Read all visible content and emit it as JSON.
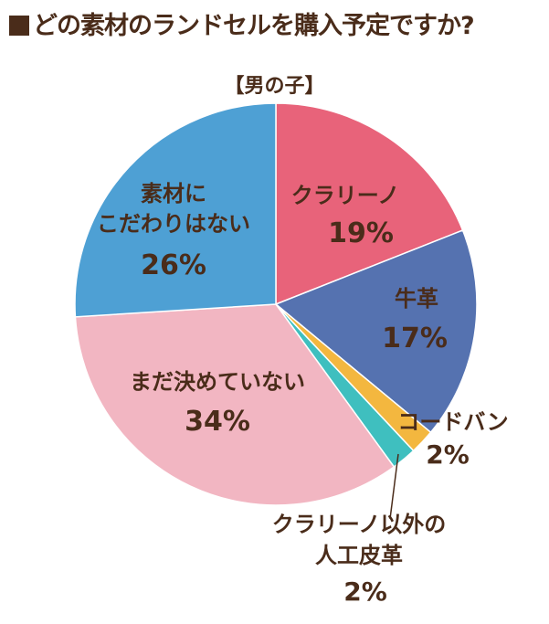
{
  "title": "どの素材のランドセルを購入予定ですか?",
  "subtitle": "【男の子】",
  "colors": {
    "text": "#4a2c1a",
    "clarino": "#e8637a",
    "leather": "#5572b0",
    "cordovan": "#f3b73f",
    "other_artificial": "#3fbfbf",
    "undecided": "#f2b6c2",
    "no_preference": "#4ea0d4"
  },
  "chart_data": {
    "type": "pie",
    "title": "どの素材のランドセルを購入予定ですか?",
    "subtitle": "【男の子】",
    "start_angle_deg": 0,
    "direction": "clockwise",
    "slices": [
      {
        "label": "クラリーノ",
        "value": 19,
        "display": "19%",
        "color": "#e8637a"
      },
      {
        "label": "牛革",
        "value": 17,
        "display": "17%",
        "color": "#5572b0"
      },
      {
        "label": "コードバン",
        "value": 2,
        "display": "2%",
        "color": "#f3b73f"
      },
      {
        "label": "クラリーノ以外の人工皮革",
        "value": 2,
        "display": "2%",
        "color": "#3fbfbf"
      },
      {
        "label": "まだ決めていない",
        "value": 34,
        "display": "34%",
        "color": "#f2b6c2"
      },
      {
        "label": "素材にこだわりはない",
        "value": 26,
        "display": "26%",
        "color": "#4ea0d4"
      }
    ]
  }
}
